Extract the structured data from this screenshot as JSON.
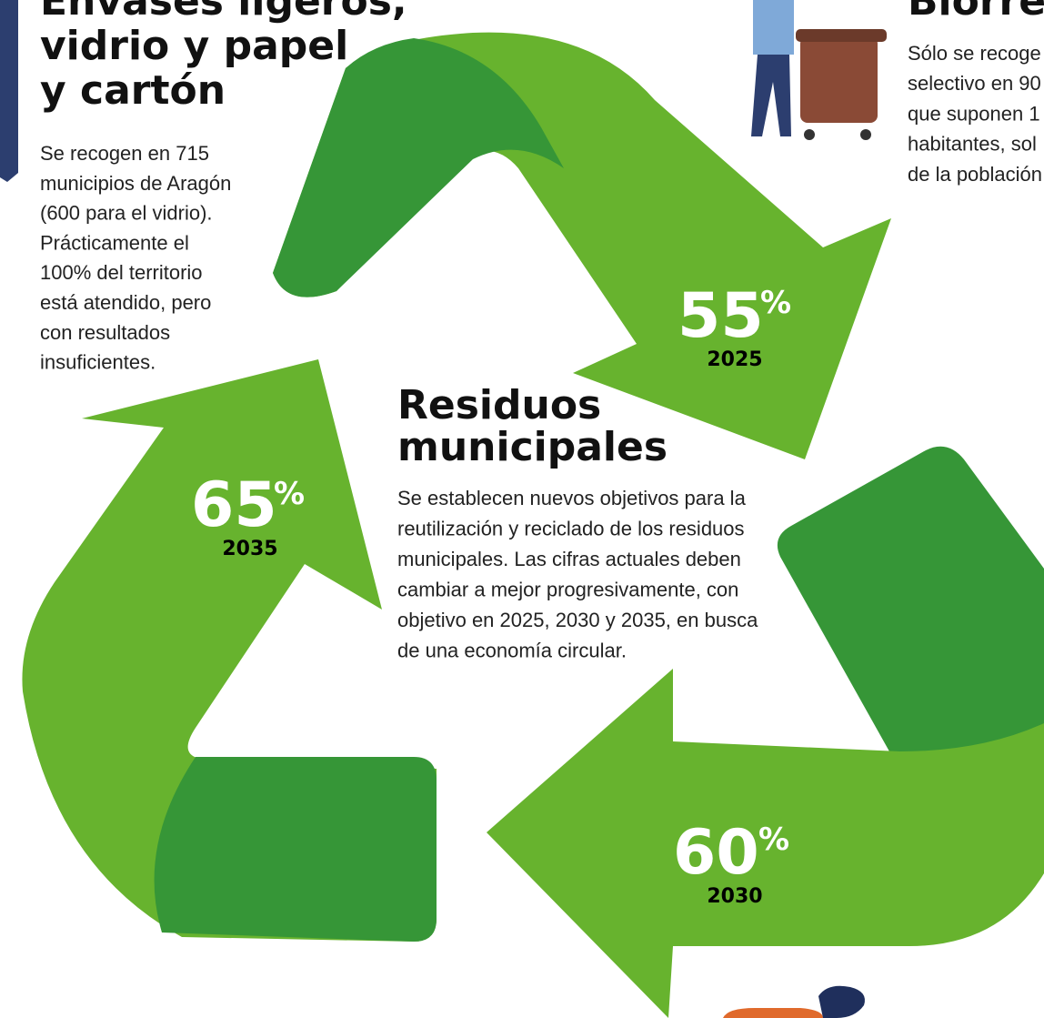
{
  "left_panel": {
    "title_lines": [
      "Envases ligeros,",
      "vidrio y papel",
      "y cartón"
    ],
    "body_lines": [
      "Se recogen en 715",
      "municipios de Aragón",
      "(600 para el vidrio).",
      "Prácticamente el",
      "100% del territorio",
      "está atendido, pero",
      "con resultados",
      "insuficientes."
    ]
  },
  "right_panel": {
    "title": "Biorres",
    "body_lines": [
      "Sólo se recoge",
      "selectivo en 90",
      "que suponen 1",
      "habitantes, sol",
      "de la población"
    ]
  },
  "center": {
    "title_lines": [
      "Residuos",
      "municipales"
    ],
    "body_lines": [
      "Se establecen nuevos objetivos para la",
      "reutilización y reciclado de los residuos",
      "municipales. Las cifras actuales deben",
      "cambiar a mejor progresivamente, con",
      "objetivo en 2025, 2030 y 2035, en busca",
      "de una economía circular."
    ]
  },
  "targets": [
    {
      "number": "55",
      "unit": "%",
      "year": "2025"
    },
    {
      "number": "65",
      "unit": "%",
      "year": "2035"
    },
    {
      "number": "60",
      "unit": "%",
      "year": "2030"
    }
  ]
}
